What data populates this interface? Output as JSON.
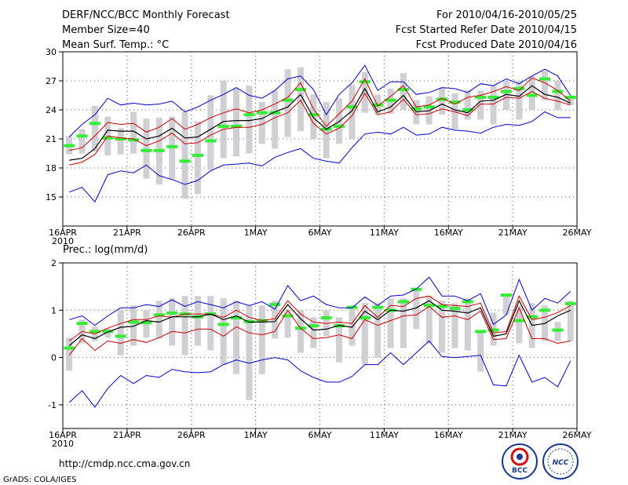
{
  "header": {
    "left_line1": "DERF/NCC/BCC Monthly Forecast",
    "left_line2": "Member Size=40",
    "left_line3": "Mean Surf. Temp.: °C",
    "right_line1": "For 2010/04/16-2010/05/25",
    "right_line2": "Fcst Started Refer Date 2010/04/15",
    "right_line3": "Fcst Produced Date 2010/04/16"
  },
  "footer": {
    "url": "http://cmdp.ncc.cma.gov.cn",
    "grads_credit": "GrADS: COLA/IGES",
    "logo_left": "BCC",
    "logo_right": "NCC"
  },
  "colors": {
    "envelope": "#0000cc",
    "spread": "#cc0000",
    "mean": "#000000",
    "box": "#cfcfd4",
    "member_median": "#33ee33",
    "grid": "#555555"
  },
  "chart_data": [
    {
      "type": "line",
      "title": "Mean Surf. Temp.: °C",
      "ylabel": "°C",
      "xlabel": "",
      "ylim": [
        12,
        30
      ],
      "yticks": [
        15,
        18,
        21,
        24,
        27,
        30
      ],
      "ytick_labels": [
        "15",
        "18",
        "21",
        "24",
        "27",
        "30"
      ],
      "x_days": 40,
      "xticks": [
        0,
        5,
        10,
        15,
        20,
        25,
        30,
        35,
        40
      ],
      "xtick_labels": [
        "16APR",
        "21APR",
        "26APR",
        "1MAY",
        "6MAY",
        "11MAY",
        "16MAY",
        "21MAY",
        "26MAY"
      ],
      "xtick_sublabel": "2010",
      "grid": true,
      "series": [
        {
          "name": "max",
          "color": "#0000cc",
          "values": [
            21.2,
            22.5,
            23.5,
            25.2,
            24.5,
            24.7,
            24.5,
            24.6,
            24.9,
            23.8,
            24.3,
            25.0,
            25.6,
            26.3,
            25.5,
            25.2,
            26.0,
            27.2,
            27.5,
            26.1,
            23.5,
            25.6,
            26.8,
            28.6,
            26.0,
            26.9,
            26.9,
            25.6,
            25.8,
            26.3,
            26.2,
            25.8,
            26.7,
            26.5,
            27.2,
            26.7,
            27.5,
            28.2,
            27.5,
            25.5
          ]
        },
        {
          "name": "upper",
          "color": "#cc0000",
          "values": [
            19.8,
            20.1,
            21.3,
            22.7,
            22.5,
            22.6,
            21.7,
            22.2,
            23.1,
            22.0,
            22.5,
            23.2,
            23.7,
            24.1,
            23.7,
            24.0,
            24.6,
            25.3,
            26.8,
            24.1,
            22.3,
            23.6,
            24.9,
            27.2,
            24.4,
            25.4,
            26.5,
            24.3,
            24.5,
            25.2,
            24.6,
            25.3,
            25.5,
            25.9,
            26.4,
            26.0,
            27.3,
            26.8,
            26.0,
            24.9
          ]
        },
        {
          "name": "mean",
          "color": "#000000",
          "values": [
            18.8,
            19.0,
            20.0,
            21.9,
            21.8,
            21.8,
            21.0,
            21.3,
            22.1,
            21.1,
            21.2,
            22.0,
            22.8,
            22.9,
            22.9,
            23.1,
            23.8,
            24.3,
            25.6,
            23.2,
            22.0,
            22.8,
            23.9,
            26.2,
            23.8,
            24.3,
            25.5,
            23.8,
            23.9,
            24.6,
            24.0,
            23.7,
            24.9,
            25.0,
            25.6,
            25.4,
            26.5,
            25.6,
            25.3,
            24.7
          ]
        },
        {
          "name": "lower",
          "color": "#cc0000",
          "values": [
            18.3,
            18.6,
            19.4,
            21.3,
            21.1,
            21.0,
            20.3,
            20.8,
            21.6,
            20.5,
            20.6,
            21.4,
            22.0,
            22.2,
            22.2,
            22.5,
            23.2,
            23.7,
            25.0,
            22.6,
            21.5,
            22.1,
            23.4,
            25.7,
            23.5,
            23.8,
            25.1,
            23.5,
            23.6,
            24.1,
            23.8,
            23.4,
            24.6,
            24.6,
            25.3,
            25.2,
            25.9,
            25.2,
            24.9,
            24.5
          ]
        },
        {
          "name": "min",
          "color": "#0000cc",
          "values": [
            15.5,
            16.0,
            14.5,
            17.3,
            17.7,
            17.5,
            18.3,
            17.2,
            16.8,
            16.3,
            16.7,
            17.7,
            18.3,
            18.4,
            18.5,
            18.2,
            19.1,
            19.6,
            20.0,
            19.0,
            18.7,
            18.5,
            20.1,
            21.5,
            21.7,
            21.5,
            22.2,
            21.4,
            21.5,
            22.2,
            21.9,
            21.8,
            21.6,
            22.2,
            22.5,
            22.4,
            22.8,
            23.8,
            23.2,
            23.2
          ]
        }
      ],
      "boxes": [
        {
          "low": 19.4,
          "high": 21.3,
          "median": 20.3
        },
        {
          "low": 19.5,
          "high": 22.0,
          "median": 21.3
        },
        {
          "low": 19.7,
          "high": 24.4,
          "median": 22.6
        },
        {
          "low": 19.3,
          "high": 23.3,
          "median": 21.1
        },
        {
          "low": 19.4,
          "high": 22.1,
          "median": 21.0
        },
        {
          "low": 19.5,
          "high": 23.8,
          "median": 20.9
        },
        {
          "low": 16.9,
          "high": 23.1,
          "median": 19.8
        },
        {
          "low": 16.3,
          "high": 23.2,
          "median": 19.8
        },
        {
          "low": 16.8,
          "high": 23.3,
          "median": 20.2
        },
        {
          "low": 14.8,
          "high": 23.8,
          "median": 18.7
        },
        {
          "low": 15.3,
          "high": 22.8,
          "median": 19.3
        },
        {
          "low": 17.8,
          "high": 25.5,
          "median": 20.8
        },
        {
          "low": 19.0,
          "high": 27.0,
          "median": 22.3
        },
        {
          "low": 19.2,
          "high": 26.2,
          "median": 22.3
        },
        {
          "low": 19.5,
          "high": 26.5,
          "median": 23.5
        },
        {
          "low": 20.5,
          "high": 24.8,
          "median": 23.7
        },
        {
          "low": 20.0,
          "high": 26.0,
          "median": 23.7
        },
        {
          "low": 21.2,
          "high": 28.2,
          "median": 25.0
        },
        {
          "low": 21.8,
          "high": 28.4,
          "median": 26.1
        },
        {
          "low": 21.0,
          "high": 25.6,
          "median": 23.5
        },
        {
          "low": 19.0,
          "high": 24.8,
          "median": 22.0
        },
        {
          "low": 20.5,
          "high": 25.2,
          "median": 22.3
        },
        {
          "low": 21.0,
          "high": 26.6,
          "median": 24.3
        },
        {
          "low": 23.7,
          "high": 27.9,
          "median": 26.9
        },
        {
          "low": 23.5,
          "high": 25.6,
          "median": 24.5
        },
        {
          "low": 23.6,
          "high": 26.2,
          "median": 25.0
        },
        {
          "low": 24.0,
          "high": 27.8,
          "median": 26.1
        },
        {
          "low": 22.5,
          "high": 25.0,
          "median": 24.1
        },
        {
          "low": 22.5,
          "high": 25.4,
          "median": 24.3
        },
        {
          "low": 23.5,
          "high": 26.3,
          "median": 25.1
        },
        {
          "low": 22.0,
          "high": 25.7,
          "median": 24.8
        },
        {
          "low": 23.0,
          "high": 26.0,
          "median": 24.0
        },
        {
          "low": 23.0,
          "high": 26.0,
          "median": 25.3
        },
        {
          "low": 22.5,
          "high": 26.5,
          "median": 25.3
        },
        {
          "low": 24.0,
          "high": 27.0,
          "median": 25.9
        },
        {
          "low": 23.0,
          "high": 27.0,
          "median": 26.2
        },
        {
          "low": 24.0,
          "high": 27.5,
          "median": 25.5
        },
        {
          "low": 25.0,
          "high": 28.0,
          "median": 27.2
        },
        {
          "low": 24.0,
          "high": 27.0,
          "median": 25.9
        },
        {
          "low": 24.5,
          "high": 25.5,
          "median": 25.3
        }
      ]
    },
    {
      "type": "line",
      "title": "Prec.: log(mm/d)",
      "ylabel": "log(mm/d)",
      "xlabel": "",
      "ylim": [
        -1.5,
        2.0
      ],
      "yticks": [
        -1,
        0,
        1,
        2
      ],
      "ytick_labels": [
        "-1",
        "0",
        "1",
        "2"
      ],
      "x_days": 40,
      "xticks": [
        0,
        5,
        10,
        15,
        20,
        25,
        30,
        35,
        40
      ],
      "xtick_labels": [
        "16APR",
        "21APR",
        "26APR",
        "1MAY",
        "6MAY",
        "11MAY",
        "16MAY",
        "21MAY",
        "26MAY"
      ],
      "xtick_sublabel": "2010",
      "grid": true,
      "series": [
        {
          "name": "max",
          "color": "#0000cc",
          "values": [
            0.8,
            0.88,
            0.68,
            0.88,
            1.05,
            1.05,
            1.12,
            1.08,
            1.22,
            1.08,
            1.18,
            1.12,
            1.05,
            1.18,
            1.1,
            1.18,
            1.02,
            1.52,
            1.2,
            1.3,
            1.12,
            1.05,
            1.05,
            1.28,
            1.1,
            1.3,
            1.32,
            1.45,
            1.7,
            1.3,
            1.3,
            1.2,
            1.35,
            0.7,
            0.9,
            1.65,
            1.0,
            1.25,
            1.15,
            1.4
          ]
        },
        {
          "name": "upper",
          "color": "#cc0000",
          "values": [
            0.35,
            0.55,
            0.5,
            0.62,
            0.72,
            0.8,
            0.8,
            0.88,
            0.85,
            0.92,
            0.92,
            0.92,
            0.85,
            1.0,
            0.85,
            0.78,
            0.82,
            1.2,
            0.92,
            0.75,
            0.72,
            0.75,
            0.72,
            1.1,
            0.85,
            1.1,
            1.08,
            1.25,
            1.3,
            1.12,
            1.1,
            1.08,
            1.15,
            0.52,
            0.55,
            1.3,
            0.8,
            0.85,
            0.95,
            1.1
          ]
        },
        {
          "name": "mean",
          "color": "#000000",
          "values": [
            0.25,
            0.48,
            0.4,
            0.54,
            0.64,
            0.66,
            0.78,
            0.75,
            0.86,
            0.86,
            0.86,
            0.92,
            0.8,
            0.88,
            0.75,
            0.75,
            0.76,
            1.12,
            0.82,
            0.58,
            0.6,
            0.68,
            0.64,
            0.98,
            0.8,
            1.0,
            0.98,
            1.05,
            1.2,
            1.0,
            0.98,
            0.94,
            1.05,
            0.45,
            0.5,
            1.2,
            0.68,
            0.72,
            0.88,
            1.0
          ]
        },
        {
          "name": "lower",
          "color": "#cc0000",
          "values": [
            0.05,
            0.4,
            0.15,
            0.35,
            0.3,
            0.38,
            0.32,
            0.42,
            0.55,
            0.52,
            0.6,
            0.6,
            0.45,
            0.65,
            0.52,
            0.48,
            0.55,
            1.0,
            0.62,
            0.4,
            0.42,
            0.48,
            0.4,
            0.8,
            0.68,
            0.78,
            0.88,
            0.9,
            1.08,
            0.85,
            0.88,
            0.8,
            0.98,
            0.38,
            0.4,
            1.05,
            0.4,
            0.4,
            0.3,
            0.35
          ]
        },
        {
          "name": "min",
          "color": "#0000cc",
          "values": [
            -0.95,
            -0.7,
            -1.05,
            -0.65,
            -0.38,
            -0.55,
            -0.38,
            -0.42,
            -0.25,
            -0.3,
            -0.32,
            -0.3,
            -0.15,
            -0.05,
            -0.12,
            -0.05,
            0.0,
            -0.05,
            -0.28,
            -0.42,
            -0.52,
            -0.52,
            -0.4,
            -0.15,
            -0.15,
            0.1,
            -0.15,
            0.1,
            0.35,
            0.02,
            0.0,
            0.02,
            0.05,
            -0.58,
            -0.6,
            0.05,
            -0.52,
            -0.42,
            -0.62,
            -0.07
          ]
        }
      ],
      "boxes": [
        {
          "low": -0.28,
          "high": 0.42,
          "median": 0.2
        },
        {
          "low": 0.3,
          "high": 0.8,
          "median": 0.72
        },
        {
          "low": 0.35,
          "high": 0.65,
          "median": 0.55
        },
        {
          "low": 0.42,
          "high": 0.62,
          "median": 0.55
        },
        {
          "low": 0.05,
          "high": 1.0,
          "median": 0.45
        },
        {
          "low": 0.25,
          "high": 1.1,
          "median": 0.75
        },
        {
          "low": 0.42,
          "high": 1.0,
          "median": 0.74
        },
        {
          "low": 0.4,
          "high": 1.2,
          "median": 0.9
        },
        {
          "low": 0.25,
          "high": 1.25,
          "median": 0.94
        },
        {
          "low": 0.05,
          "high": 1.3,
          "median": 0.92
        },
        {
          "low": 0.25,
          "high": 1.3,
          "median": 0.86
        },
        {
          "low": 0.15,
          "high": 1.3,
          "median": 0.92
        },
        {
          "low": -0.15,
          "high": 1.25,
          "median": 0.7
        },
        {
          "low": -0.35,
          "high": 1.2,
          "median": 0.84
        },
        {
          "low": -0.9,
          "high": 1.1,
          "median": 0.76
        },
        {
          "low": -0.35,
          "high": 1.1,
          "median": 0.78
        },
        {
          "low": 0.4,
          "high": 1.2,
          "median": 1.12
        },
        {
          "low": 0.42,
          "high": 1.0,
          "median": 0.88
        },
        {
          "low": 0.1,
          "high": 1.0,
          "median": 0.62
        },
        {
          "low": 0.2,
          "high": 0.85,
          "median": 0.67
        },
        {
          "low": 0.45,
          "high": 1.0,
          "median": 0.84
        },
        {
          "low": -0.1,
          "high": 0.85,
          "median": 0.67
        },
        {
          "low": 0.25,
          "high": 1.1,
          "median": 1.06
        },
        {
          "low": -0.15,
          "high": 1.15,
          "median": 0.84
        },
        {
          "low": 0.0,
          "high": 1.15,
          "median": 1.06
        },
        {
          "low": 0.2,
          "high": 1.25,
          "median": 1.0
        },
        {
          "low": 0.2,
          "high": 1.25,
          "median": 1.18
        },
        {
          "low": 0.6,
          "high": 1.4,
          "median": 1.44
        },
        {
          "low": 0.3,
          "high": 1.3,
          "median": 1.1
        },
        {
          "low": 0.1,
          "high": 1.2,
          "median": 1.08
        },
        {
          "low": 0.2,
          "high": 1.15,
          "median": 1.04
        },
        {
          "low": 0.15,
          "high": 1.25,
          "median": 1.18
        },
        {
          "low": -0.3,
          "high": 0.55,
          "median": 0.55
        },
        {
          "low": 0.25,
          "high": 0.95,
          "median": 0.58
        },
        {
          "low": 0.9,
          "high": 1.35,
          "median": 1.32
        },
        {
          "low": 0.3,
          "high": 1.1,
          "median": 0.78
        },
        {
          "low": 0.2,
          "high": 1.15,
          "median": 0.86
        },
        {
          "low": 0.35,
          "high": 1.1,
          "median": 1.0
        },
        {
          "low": 0.35,
          "high": 0.75,
          "median": 0.58
        },
        {
          "low": 0.35,
          "high": 1.2,
          "median": 1.14
        }
      ]
    }
  ]
}
